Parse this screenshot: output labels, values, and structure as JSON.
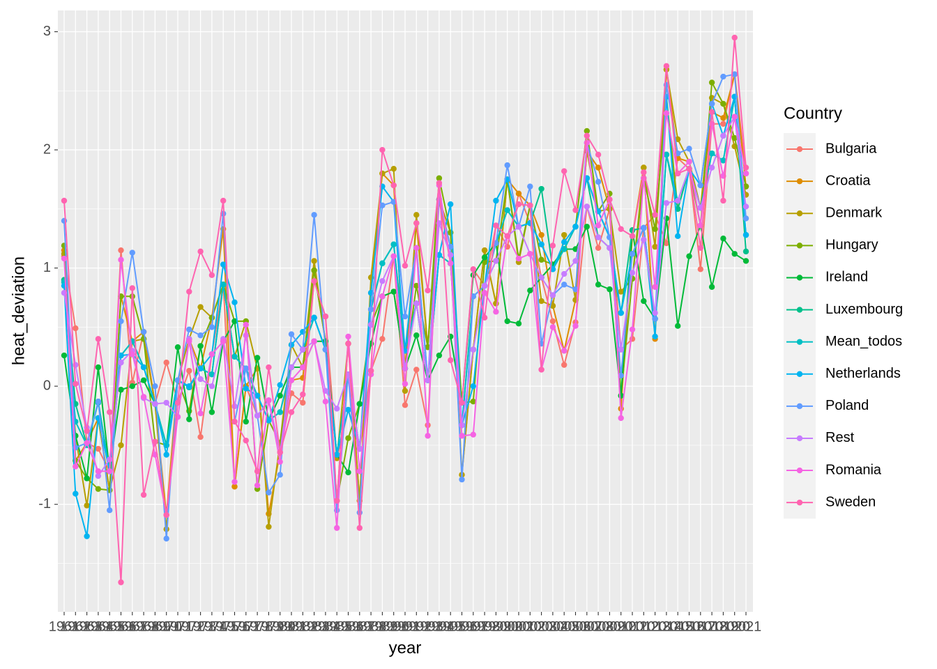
{
  "chart_data": {
    "type": "line",
    "x_label": "year",
    "y_label": "heat_deviation",
    "legend_title": "Country",
    "legend": "right",
    "grid": true,
    "categories": [
      "1961",
      "1962",
      "1963",
      "1964",
      "1965",
      "1966",
      "1967",
      "1968",
      "1969",
      "1970",
      "1971",
      "1972",
      "1973",
      "1974",
      "1975",
      "1976",
      "1977",
      "1978",
      "1979",
      "1980",
      "1981",
      "1982",
      "1983",
      "1984",
      "1985",
      "1986",
      "1987",
      "1988",
      "1989",
      "1990",
      "1991",
      "1992",
      "1993",
      "1994",
      "1995",
      "1996",
      "1997",
      "1998",
      "1999",
      "2000",
      "2001",
      "2002",
      "2003",
      "2004",
      "2005",
      "2006",
      "2007",
      "2008",
      "2009",
      "2010",
      "2011",
      "2012",
      "2013",
      "2014",
      "2015",
      "2016",
      "2017",
      "2018",
      "2019",
      "2020",
      "2021"
    ],
    "ylim": [
      -1.91,
      3.18
    ],
    "yticks": [
      -1,
      0,
      1,
      2,
      3
    ],
    "y_minor_ticks": [
      -1.5,
      -0.5,
      0.5,
      1.5,
      2.5
    ],
    "series": [
      {
        "name": "Bulgaria",
        "color": "#F8766D",
        "values": [
          1.1,
          0.49,
          -0.48,
          -0.53,
          -0.72,
          1.15,
          0.03,
          0.46,
          -0.15,
          0.2,
          -0.13,
          0.13,
          -0.43,
          0.27,
          0.86,
          -0.85,
          0.0,
          -0.25,
          -0.12,
          -0.56,
          -0.06,
          -0.14,
          0.89,
          0.59,
          -0.61,
          -0.2,
          -0.53,
          0.13,
          0.4,
          1.1,
          -0.16,
          0.14,
          -0.33,
          1.58,
          1.04,
          -0.14,
          0.99,
          0.85,
          1.36,
          1.18,
          1.63,
          1.38,
          0.92,
          0.55,
          0.18,
          0.54,
          1.52,
          1.17,
          1.5,
          0.31,
          0.4,
          1.34,
          1.45,
          1.21,
          1.93,
          1.84,
          0.99,
          2.22,
          2.22,
          2.64,
          1.8
        ]
      },
      {
        "name": "Croatia",
        "color": "#DE8C00",
        "values": [
          1.15,
          -0.63,
          -0.48,
          -0.27,
          -0.88,
          0.76,
          0.38,
          0.46,
          -0.15,
          -1.09,
          0.05,
          0.4,
          0.15,
          0.58,
          1.33,
          -0.85,
          0.0,
          0.15,
          -1.08,
          -0.56,
          0.05,
          0.07,
          0.98,
          0.38,
          -0.97,
          0.36,
          -0.97,
          0.79,
          1.8,
          1.7,
          0.15,
          1.38,
          0.33,
          1.58,
          1.18,
          -0.75,
          0.31,
          1.15,
          0.7,
          1.75,
          1.63,
          1.53,
          1.28,
          0.68,
          0.3,
          0.73,
          1.99,
          1.85,
          1.5,
          -0.19,
          1.27,
          1.85,
          0.4,
          2.68,
          1.93,
          1.9,
          1.51,
          2.32,
          2.27,
          2.64,
          1.69
        ]
      },
      {
        "name": "Denmark",
        "color": "#B79F00",
        "values": [
          1.12,
          -0.42,
          -1.01,
          -0.27,
          -0.88,
          -0.5,
          0.38,
          0.4,
          -0.15,
          -1.21,
          0.05,
          0.4,
          0.67,
          0.58,
          0.86,
          0.25,
          0.55,
          0.15,
          -1.19,
          -0.48,
          0.35,
          0.16,
          1.06,
          0.38,
          -0.61,
          0.36,
          -0.97,
          0.92,
          1.8,
          1.84,
          -0.04,
          1.45,
          0.33,
          1.58,
          1.3,
          -0.75,
          0.31,
          1.15,
          0.7,
          1.75,
          1.05,
          1.53,
          0.72,
          0.68,
          1.28,
          0.73,
          1.99,
          1.48,
          1.5,
          0.8,
          0.91,
          1.85,
          1.18,
          2.68,
          2.09,
          1.9,
          1.51,
          2.44,
          2.39,
          2.03,
          1.62
        ]
      },
      {
        "name": "Hungary",
        "color": "#7CAE00",
        "values": [
          1.19,
          -0.63,
          -0.78,
          -0.87,
          -0.88,
          0.76,
          0.76,
          0.4,
          -0.47,
          -0.5,
          0.05,
          -0.21,
          0.34,
          0.58,
          0.86,
          0.55,
          0.55,
          -0.87,
          -0.29,
          -0.48,
          0.16,
          0.16,
          0.98,
          0.38,
          -0.97,
          -0.44,
          -0.15,
          0.52,
          0.76,
          0.8,
          0.15,
          0.85,
          0.33,
          1.76,
          1.3,
          -0.14,
          -0.13,
          1.05,
          1.06,
          1.75,
          1.08,
          1.53,
          1.07,
          1.03,
          1.16,
          1.35,
          2.16,
          1.48,
          1.63,
          -0.08,
          0.91,
          1.76,
          1.33,
          2.45,
          1.5,
          1.84,
          1.36,
          2.57,
          2.39,
          2.1,
          1.69
        ]
      },
      {
        "name": "Ireland",
        "color": "#00BA38",
        "values": [
          0.26,
          -0.42,
          -0.78,
          0.16,
          -0.72,
          -0.03,
          0.0,
          0.05,
          -0.15,
          -0.5,
          0.33,
          -0.28,
          0.34,
          -0.22,
          0.38,
          0.55,
          -0.3,
          0.24,
          -0.29,
          -0.08,
          0.16,
          0.16,
          0.38,
          0.38,
          -0.58,
          -0.73,
          -0.15,
          0.36,
          0.76,
          0.8,
          0.15,
          0.43,
          0.05,
          0.26,
          0.42,
          -0.14,
          0.94,
          1.09,
          1.21,
          0.55,
          0.53,
          0.81,
          0.92,
          1.03,
          1.16,
          1.16,
          1.35,
          0.86,
          0.82,
          -0.08,
          1.32,
          0.72,
          0.57,
          1.42,
          0.51,
          1.1,
          1.36,
          0.84,
          1.25,
          1.12,
          1.06
        ]
      },
      {
        "name": "Luxembourg",
        "color": "#00C08B",
        "values": [
          0.9,
          -0.15,
          -0.5,
          -0.13,
          -0.72,
          0.26,
          0.38,
          0.16,
          -0.15,
          -0.5,
          0.05,
          -0.01,
          0.15,
          0.1,
          0.86,
          0.25,
          0.15,
          -0.08,
          -0.29,
          -0.22,
          0.16,
          0.31,
          0.58,
          0.31,
          -0.58,
          0.1,
          -0.53,
          0.65,
          1.04,
          1.2,
          0.3,
          0.7,
          0.05,
          1.11,
          1.04,
          -0.33,
          0.76,
          0.85,
          1.21,
          1.49,
          1.35,
          1.38,
          1.67,
          0.99,
          1.16,
          1.35,
          1.76,
          1.26,
          1.17,
          0.62,
          1.32,
          1.34,
          0.57,
          1.96,
          1.5,
          1.84,
          1.51,
          1.97,
          1.91,
          2.45,
          1.14
        ]
      },
      {
        "name": "Mean_todos",
        "color": "#00BFC4",
        "values": [
          0.88,
          -0.3,
          -0.5,
          -0.14,
          -0.72,
          0.26,
          0.38,
          0.16,
          -0.15,
          -0.5,
          0.05,
          -0.01,
          0.15,
          0.1,
          0.86,
          0.25,
          0.15,
          -0.08,
          -0.29,
          -0.22,
          0.16,
          0.31,
          0.58,
          0.31,
          -0.58,
          0.1,
          -0.53,
          0.65,
          1.04,
          1.2,
          0.3,
          0.7,
          0.05,
          1.11,
          1.04,
          -0.33,
          0.76,
          0.85,
          1.21,
          1.49,
          1.35,
          1.38,
          1.2,
          0.99,
          1.16,
          1.35,
          1.76,
          1.48,
          1.26,
          0.62,
          1.12,
          1.34,
          0.57,
          1.96,
          1.57,
          1.84,
          1.51,
          1.97,
          1.91,
          2.45,
          1.28
        ]
      },
      {
        "name": "Netherlands",
        "color": "#00B4F0",
        "values": [
          0.85,
          -0.91,
          -1.27,
          -0.27,
          -0.72,
          0.26,
          0.27,
          0.16,
          -0.15,
          -0.58,
          0.05,
          0.0,
          0.15,
          0.27,
          1.03,
          0.71,
          -0.02,
          -0.08,
          -0.29,
          0.01,
          0.35,
          0.46,
          0.58,
          0.31,
          -0.58,
          -0.2,
          -0.53,
          0.79,
          1.69,
          1.56,
          0.3,
          1.17,
          0.05,
          1.11,
          1.54,
          -0.33,
          0.0,
          0.85,
          1.57,
          1.75,
          1.35,
          1.38,
          1.2,
          0.99,
          1.22,
          1.35,
          1.76,
          1.48,
          1.26,
          0.62,
          1.12,
          1.34,
          0.42,
          2.45,
          1.27,
          1.84,
          1.7,
          2.39,
          2.12,
          2.45,
          1.28
        ]
      },
      {
        "name": "Poland",
        "color": "#619CFF",
        "values": [
          1.4,
          -0.52,
          -0.48,
          -0.13,
          -1.05,
          0.55,
          1.13,
          0.46,
          0.0,
          -1.29,
          0.05,
          0.48,
          0.43,
          0.5,
          1.46,
          -0.3,
          0.15,
          -0.25,
          -0.9,
          -0.75,
          0.44,
          0.31,
          1.45,
          0.31,
          -1.05,
          0.1,
          -1.07,
          0.65,
          1.53,
          1.56,
          0.59,
          1.17,
          0.05,
          1.58,
          1.18,
          -0.79,
          0.76,
          0.85,
          1.21,
          1.87,
          1.35,
          1.69,
          0.36,
          0.77,
          0.86,
          0.82,
          2.06,
          1.73,
          1.26,
          0.09,
          1.12,
          1.34,
          0.57,
          2.55,
          1.97,
          2.01,
          1.7,
          2.39,
          2.62,
          2.64,
          1.42
        ]
      },
      {
        "name": "Rest",
        "color": "#C77CFF",
        "values": [
          0.79,
          0.18,
          -0.35,
          -0.76,
          -0.62,
          0.2,
          0.3,
          -0.1,
          -0.15,
          -0.14,
          -0.26,
          0.4,
          0.06,
          0.0,
          0.4,
          -0.17,
          0.43,
          -0.25,
          -0.12,
          -0.56,
          0.16,
          0.31,
          0.38,
          -0.04,
          -0.19,
          0.1,
          -0.53,
          0.52,
          0.89,
          1.1,
          0.15,
          0.7,
          0.05,
          1.38,
          1.11,
          -0.33,
          0.31,
          0.85,
          1.06,
          1.27,
          1.35,
          1.12,
          0.92,
          0.77,
          0.95,
          1.06,
          1.52,
          1.26,
          1.17,
          0.31,
          0.96,
          1.24,
          0.62,
          1.55,
          1.57,
          1.84,
          1.51,
          1.85,
          2.12,
          2.28,
          1.52
        ]
      },
      {
        "name": "Romania",
        "color": "#F564E3",
        "values": [
          1.08,
          -0.68,
          -0.48,
          -0.72,
          -0.72,
          1.07,
          0.27,
          -0.09,
          -0.58,
          -1.09,
          -0.26,
          0.38,
          -0.23,
          0.27,
          0.38,
          -0.81,
          0.52,
          -0.84,
          -0.12,
          -0.64,
          0.05,
          0.16,
          0.38,
          -0.13,
          -1.2,
          0.42,
          -0.72,
          0.1,
          0.76,
          1.1,
          0.02,
          1.17,
          -0.42,
          1.7,
          1.04,
          -0.42,
          -0.41,
          0.79,
          0.63,
          1.27,
          1.08,
          1.12,
          0.14,
          0.5,
          0.3,
          0.51,
          2.06,
          1.36,
          1.58,
          -0.27,
          0.48,
          1.76,
          0.84,
          2.31,
          1.8,
          1.9,
          1.36,
          2.22,
          1.78,
          2.28,
          1.8
        ]
      },
      {
        "name": "Sweden",
        "color": "#FF64B0",
        "values": [
          1.57,
          0.02,
          -0.38,
          0.4,
          -0.22,
          -1.66,
          0.83,
          -0.92,
          -0.47,
          -1.09,
          -0.14,
          0.8,
          1.14,
          0.94,
          1.57,
          -0.3,
          -0.46,
          -0.72,
          0.16,
          -0.56,
          -0.22,
          -0.07,
          0.89,
          0.59,
          -0.97,
          0.36,
          -1.2,
          0.13,
          2.0,
          1.7,
          1.02,
          1.38,
          0.81,
          1.72,
          0.22,
          -0.14,
          0.99,
          0.58,
          1.36,
          1.27,
          1.54,
          1.53,
          0.14,
          1.19,
          1.82,
          1.49,
          2.12,
          1.96,
          1.58,
          1.33,
          1.27,
          1.81,
          1.45,
          2.71,
          1.8,
          1.84,
          1.17,
          2.32,
          1.57,
          2.95,
          1.85
        ]
      }
    ]
  }
}
